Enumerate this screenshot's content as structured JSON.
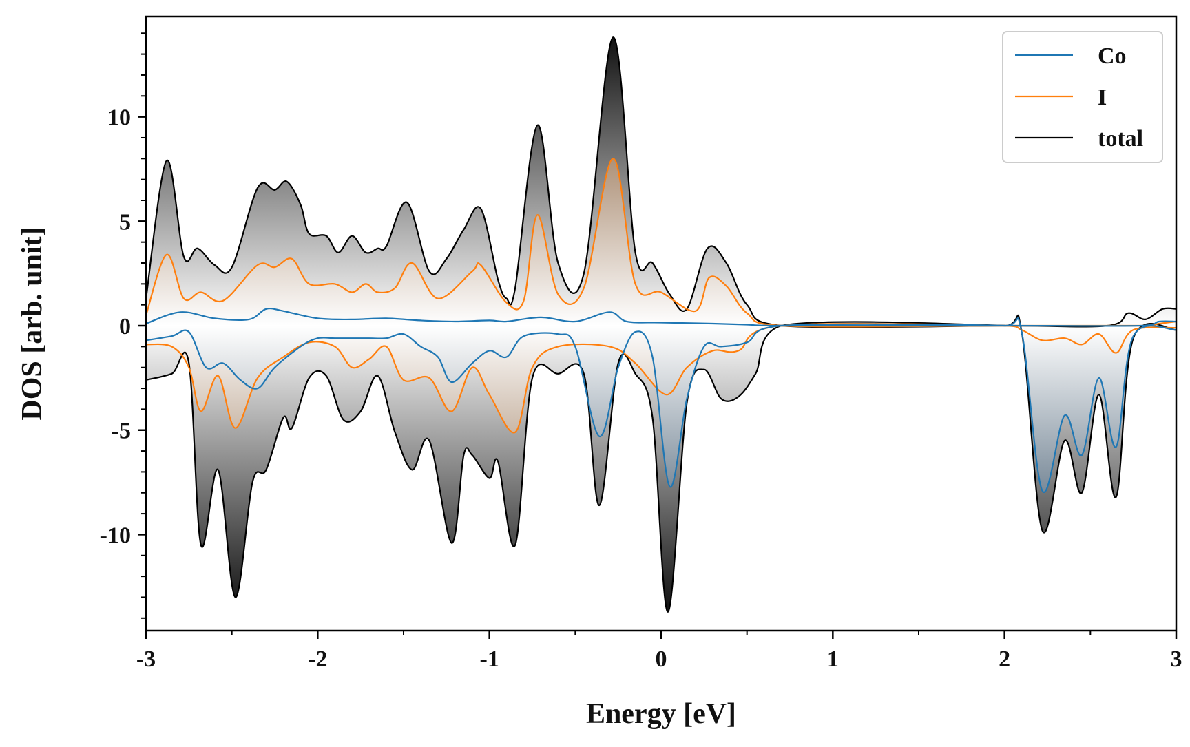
{
  "chart_data": {
    "type": "area",
    "title": "",
    "xlabel": "Energy [eV]",
    "ylabel": "DOS [arb. unit]",
    "xlim": [
      -3,
      3
    ],
    "ylim": [
      -14.6,
      14.8
    ],
    "x_ticks": [
      -3,
      -2,
      -1,
      0,
      1,
      2,
      3
    ],
    "x_tick_labels": [
      "-3",
      "-2",
      "-1",
      "0",
      "1",
      "2",
      "3"
    ],
    "y_ticks": [
      -10,
      -5,
      0,
      5,
      10
    ],
    "y_tick_labels": [
      "-10",
      "-5",
      "0",
      "5",
      "10"
    ],
    "grid": false,
    "legend_position": "top-right",
    "series": [
      {
        "name": "Co",
        "color": "#1f77b4",
        "fill_colors": [
          "#0b2f4f",
          "#ffffff"
        ],
        "spin_up": [
          [
            -3.0,
            0.1
          ],
          [
            -2.8,
            0.65
          ],
          [
            -2.6,
            0.35
          ],
          [
            -2.4,
            0.3
          ],
          [
            -2.3,
            0.8
          ],
          [
            -2.2,
            0.7
          ],
          [
            -2.0,
            0.35
          ],
          [
            -1.8,
            0.3
          ],
          [
            -1.6,
            0.35
          ],
          [
            -1.4,
            0.25
          ],
          [
            -1.2,
            0.2
          ],
          [
            -1.0,
            0.25
          ],
          [
            -0.9,
            0.2
          ],
          [
            -0.7,
            0.4
          ],
          [
            -0.5,
            0.2
          ],
          [
            -0.3,
            0.65
          ],
          [
            -0.2,
            0.2
          ],
          [
            0.0,
            0.15
          ],
          [
            0.3,
            0.1
          ],
          [
            0.5,
            0.05
          ],
          [
            0.7,
            0.0
          ],
          [
            2.0,
            0.0
          ],
          [
            2.8,
            0.0
          ],
          [
            2.9,
            0.2
          ],
          [
            3.0,
            0.2
          ]
        ],
        "spin_down": [
          [
            -3.0,
            -0.7
          ],
          [
            -2.85,
            -0.5
          ],
          [
            -2.75,
            -0.3
          ],
          [
            -2.65,
            -2.0
          ],
          [
            -2.55,
            -1.8
          ],
          [
            -2.45,
            -2.6
          ],
          [
            -2.35,
            -3.0
          ],
          [
            -2.25,
            -2.0
          ],
          [
            -2.1,
            -1.0
          ],
          [
            -2.0,
            -0.6
          ],
          [
            -1.9,
            -0.6
          ],
          [
            -1.8,
            -0.6
          ],
          [
            -1.7,
            -0.6
          ],
          [
            -1.6,
            -0.6
          ],
          [
            -1.5,
            -0.4
          ],
          [
            -1.4,
            -1.0
          ],
          [
            -1.3,
            -1.5
          ],
          [
            -1.22,
            -2.7
          ],
          [
            -1.1,
            -1.8
          ],
          [
            -1.0,
            -1.2
          ],
          [
            -0.9,
            -1.5
          ],
          [
            -0.8,
            -0.5
          ],
          [
            -0.6,
            -0.4
          ],
          [
            -0.5,
            -1.0
          ],
          [
            -0.36,
            -5.3
          ],
          [
            -0.25,
            -2.0
          ],
          [
            -0.15,
            -0.3
          ],
          [
            -0.05,
            -1.5
          ],
          [
            0.05,
            -7.7
          ],
          [
            0.15,
            -3.5
          ],
          [
            0.25,
            -1.0
          ],
          [
            0.35,
            -1.0
          ],
          [
            0.5,
            -0.8
          ],
          [
            0.7,
            0.0
          ],
          [
            2.0,
            0.0
          ],
          [
            2.1,
            -0.3
          ],
          [
            2.22,
            -7.9
          ],
          [
            2.35,
            -4.3
          ],
          [
            2.45,
            -6.2
          ],
          [
            2.55,
            -2.5
          ],
          [
            2.65,
            -5.8
          ],
          [
            2.75,
            -0.5
          ],
          [
            3.0,
            -0.2
          ]
        ]
      },
      {
        "name": "I",
        "color": "#ff7f0e",
        "fill_colors": [
          "#7a3c05",
          "#ffffff"
        ],
        "spin_up": [
          [
            -3.0,
            0.5
          ],
          [
            -2.88,
            3.4
          ],
          [
            -2.78,
            1.3
          ],
          [
            -2.68,
            1.6
          ],
          [
            -2.55,
            1.2
          ],
          [
            -2.35,
            2.9
          ],
          [
            -2.25,
            2.8
          ],
          [
            -2.15,
            3.2
          ],
          [
            -2.05,
            2.0
          ],
          [
            -1.9,
            2.0
          ],
          [
            -1.8,
            1.6
          ],
          [
            -1.72,
            2.0
          ],
          [
            -1.65,
            1.6
          ],
          [
            -1.55,
            1.8
          ],
          [
            -1.45,
            3.0
          ],
          [
            -1.3,
            1.3
          ],
          [
            -1.1,
            2.6
          ],
          [
            -1.05,
            2.9
          ],
          [
            -0.9,
            1.1
          ],
          [
            -0.8,
            1.2
          ],
          [
            -0.72,
            5.3
          ],
          [
            -0.6,
            1.5
          ],
          [
            -0.45,
            1.8
          ],
          [
            -0.28,
            8.0
          ],
          [
            -0.15,
            2.0
          ],
          [
            0.0,
            1.6
          ],
          [
            0.2,
            0.7
          ],
          [
            0.28,
            2.3
          ],
          [
            0.38,
            1.9
          ],
          [
            0.5,
            0.6
          ],
          [
            0.7,
            0.0
          ],
          [
            2.0,
            0.0
          ],
          [
            2.8,
            0.0
          ],
          [
            2.9,
            0.1
          ],
          [
            3.0,
            0.2
          ]
        ],
        "spin_down": [
          [
            -3.0,
            -0.9
          ],
          [
            -2.85,
            -1.0
          ],
          [
            -2.75,
            -2.0
          ],
          [
            -2.68,
            -4.1
          ],
          [
            -2.58,
            -2.4
          ],
          [
            -2.48,
            -4.9
          ],
          [
            -2.35,
            -2.5
          ],
          [
            -2.2,
            -1.5
          ],
          [
            -2.05,
            -0.8
          ],
          [
            -1.9,
            -1.0
          ],
          [
            -1.8,
            -2.0
          ],
          [
            -1.7,
            -1.6
          ],
          [
            -1.6,
            -1.0
          ],
          [
            -1.5,
            -2.6
          ],
          [
            -1.35,
            -2.5
          ],
          [
            -1.22,
            -4.1
          ],
          [
            -1.1,
            -2.0
          ],
          [
            -1.0,
            -3.3
          ],
          [
            -0.85,
            -5.1
          ],
          [
            -0.75,
            -2.0
          ],
          [
            -0.6,
            -1.0
          ],
          [
            -0.3,
            -1.0
          ],
          [
            -0.15,
            -1.8
          ],
          [
            0.03,
            -3.3
          ],
          [
            0.15,
            -2.0
          ],
          [
            0.3,
            -1.2
          ],
          [
            0.45,
            -1.2
          ],
          [
            0.7,
            0.0
          ],
          [
            2.0,
            0.0
          ],
          [
            2.1,
            -0.2
          ],
          [
            2.22,
            -0.7
          ],
          [
            2.35,
            -0.6
          ],
          [
            2.45,
            -0.9
          ],
          [
            2.55,
            -0.4
          ],
          [
            2.65,
            -1.3
          ],
          [
            2.75,
            -0.2
          ],
          [
            3.0,
            -0.1
          ]
        ]
      },
      {
        "name": "total",
        "color": "#000000",
        "fill_colors": [
          "#000000",
          "#ffffff"
        ],
        "spin_up": [
          [
            -3.0,
            1.3
          ],
          [
            -2.88,
            7.9
          ],
          [
            -2.78,
            3.3
          ],
          [
            -2.7,
            3.7
          ],
          [
            -2.6,
            2.9
          ],
          [
            -2.5,
            2.8
          ],
          [
            -2.35,
            6.6
          ],
          [
            -2.25,
            6.5
          ],
          [
            -2.18,
            6.9
          ],
          [
            -2.1,
            5.8
          ],
          [
            -2.05,
            4.4
          ],
          [
            -1.95,
            4.3
          ],
          [
            -1.88,
            3.5
          ],
          [
            -1.8,
            4.3
          ],
          [
            -1.72,
            3.5
          ],
          [
            -1.65,
            3.7
          ],
          [
            -1.6,
            3.8
          ],
          [
            -1.48,
            5.9
          ],
          [
            -1.35,
            2.6
          ],
          [
            -1.25,
            3.2
          ],
          [
            -1.15,
            4.6
          ],
          [
            -1.05,
            5.6
          ],
          [
            -0.95,
            2.2
          ],
          [
            -0.9,
            1.3
          ],
          [
            -0.85,
            1.8
          ],
          [
            -0.72,
            9.6
          ],
          [
            -0.6,
            3.0
          ],
          [
            -0.45,
            2.5
          ],
          [
            -0.28,
            13.8
          ],
          [
            -0.15,
            3.5
          ],
          [
            -0.05,
            3.0
          ],
          [
            0.05,
            1.5
          ],
          [
            0.15,
            0.8
          ],
          [
            0.27,
            3.7
          ],
          [
            0.38,
            3.0
          ],
          [
            0.5,
            1.0
          ],
          [
            0.7,
            0.0
          ],
          [
            2.0,
            0.0
          ],
          [
            2.6,
            0.0
          ],
          [
            2.72,
            0.6
          ],
          [
            2.82,
            0.3
          ],
          [
            2.92,
            0.8
          ],
          [
            3.0,
            0.8
          ]
        ],
        "spin_down": [
          [
            -3.0,
            -2.6
          ],
          [
            -2.85,
            -2.3
          ],
          [
            -2.75,
            -1.8
          ],
          [
            -2.68,
            -10.5
          ],
          [
            -2.58,
            -6.9
          ],
          [
            -2.48,
            -13.0
          ],
          [
            -2.38,
            -7.5
          ],
          [
            -2.3,
            -6.9
          ],
          [
            -2.2,
            -4.4
          ],
          [
            -2.15,
            -4.9
          ],
          [
            -2.05,
            -2.5
          ],
          [
            -1.95,
            -2.4
          ],
          [
            -1.85,
            -4.5
          ],
          [
            -1.75,
            -4.1
          ],
          [
            -1.65,
            -2.4
          ],
          [
            -1.55,
            -5.1
          ],
          [
            -1.45,
            -6.9
          ],
          [
            -1.35,
            -5.5
          ],
          [
            -1.22,
            -10.4
          ],
          [
            -1.15,
            -6.2
          ],
          [
            -1.1,
            -6.2
          ],
          [
            -1.0,
            -7.3
          ],
          [
            -0.95,
            -6.5
          ],
          [
            -0.85,
            -10.5
          ],
          [
            -0.75,
            -2.5
          ],
          [
            -0.6,
            -2.3
          ],
          [
            -0.45,
            -2.3
          ],
          [
            -0.36,
            -8.6
          ],
          [
            -0.25,
            -1.8
          ],
          [
            -0.15,
            -2.3
          ],
          [
            -0.05,
            -4.4
          ],
          [
            0.04,
            -13.7
          ],
          [
            0.15,
            -3.7
          ],
          [
            0.25,
            -2.1
          ],
          [
            0.35,
            -3.5
          ],
          [
            0.45,
            -3.4
          ],
          [
            0.55,
            -2.3
          ],
          [
            0.7,
            0.0
          ],
          [
            2.0,
            0.0
          ],
          [
            2.1,
            -0.3
          ],
          [
            2.22,
            -9.8
          ],
          [
            2.35,
            -5.5
          ],
          [
            2.45,
            -8.0
          ],
          [
            2.55,
            -3.3
          ],
          [
            2.65,
            -8.2
          ],
          [
            2.75,
            -0.6
          ],
          [
            3.0,
            -0.2
          ]
        ]
      }
    ]
  }
}
